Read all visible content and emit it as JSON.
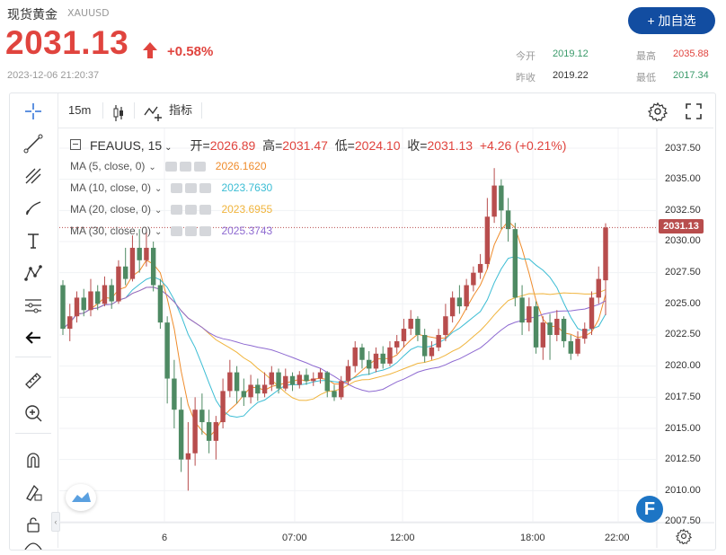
{
  "header": {
    "title": "现货黄金",
    "symbol": "XAUUSD",
    "price": "2031.13",
    "change": "+0.58%",
    "datetime": "2023-12-06 21:20:37",
    "add_watchlist": "+ 加自选",
    "quotes": [
      {
        "label": "今开",
        "value": "2019.12",
        "color": "#3a9a6a"
      },
      {
        "label": "最高",
        "value": "2035.88",
        "color": "#e0443e"
      },
      {
        "label": "昨收",
        "value": "2019.22",
        "color": "#333333"
      },
      {
        "label": "最低",
        "value": "2017.34",
        "color": "#3a9a6a"
      }
    ]
  },
  "toolbar": {
    "interval": "15m",
    "indicators": "指标"
  },
  "legend": {
    "name": "FEAUUS, 15",
    "open_label": "开=",
    "open": "2026.89",
    "high_label": "高=",
    "high": "2031.47",
    "low_label": "低=",
    "low": "2024.10",
    "close_label": "收=",
    "close": "2031.13",
    "change": "+4.26 (+0.21%)"
  },
  "moving_averages": [
    {
      "label": "MA (5, close, 0)",
      "value": "2026.1620",
      "color": "#ef8c2c"
    },
    {
      "label": "MA (10, close, 0)",
      "value": "2023.7630",
      "color": "#3cbdd4"
    },
    {
      "label": "MA (20, close, 0)",
      "value": "2023.6955",
      "color": "#f0b43c"
    },
    {
      "label": "MA (30, close, 0)",
      "value": "2025.3743",
      "color": "#8e6ad1"
    }
  ],
  "chart_data": {
    "type": "candlestick",
    "title": "FEAUUS, 15",
    "ylim": [
      2007.5,
      2037.5
    ],
    "y_ticks": [
      "2037.50",
      "2035.00",
      "2032.50",
      "2030.00",
      "2027.50",
      "2025.00",
      "2022.50",
      "2020.00",
      "2017.50",
      "2015.00",
      "2012.50",
      "2010.00",
      "2007.50"
    ],
    "x_ticks": [
      "6",
      "07:00",
      "12:00",
      "18:00",
      "22:00"
    ],
    "last_price": "2031.13",
    "up_color": "#b84d4d",
    "down_color": "#4e8a63",
    "candles": [
      [
        2026.5,
        2023.0,
        2026.9,
        2022.5
      ],
      [
        2023.0,
        2024.0,
        2025.0,
        2022.0
      ],
      [
        2024.0,
        2025.5,
        2026.0,
        2023.5
      ],
      [
        2025.5,
        2024.5,
        2026.2,
        2024.0
      ],
      [
        2024.5,
        2026.0,
        2027.0,
        2024.0
      ],
      [
        2026.0,
        2025.0,
        2026.5,
        2024.5
      ],
      [
        2025.0,
        2026.5,
        2027.2,
        2024.8
      ],
      [
        2026.5,
        2025.2,
        2027.0,
        2024.6
      ],
      [
        2025.2,
        2028.0,
        2028.5,
        2025.0
      ],
      [
        2028.0,
        2027.0,
        2029.5,
        2026.5
      ],
      [
        2027.0,
        2029.5,
        2030.5,
        2026.8
      ],
      [
        2029.5,
        2028.5,
        2031.0,
        2027.5
      ],
      [
        2028.5,
        2029.5,
        2031.0,
        2028.0
      ],
      [
        2029.5,
        2026.5,
        2030.0,
        2026.0
      ],
      [
        2026.5,
        2023.5,
        2027.0,
        2023.0
      ],
      [
        2023.5,
        2019.0,
        2024.0,
        2017.0
      ],
      [
        2019.0,
        2016.5,
        2020.5,
        2015.0
      ],
      [
        2016.5,
        2012.5,
        2017.5,
        2011.5
      ],
      [
        2012.5,
        2013.0,
        2015.5,
        2010.0
      ],
      [
        2013.0,
        2016.5,
        2017.5,
        2012.0
      ],
      [
        2016.5,
        2015.5,
        2017.8,
        2014.5
      ],
      [
        2015.5,
        2014.0,
        2016.5,
        2013.0
      ],
      [
        2014.0,
        2015.5,
        2016.0,
        2012.5
      ],
      [
        2015.5,
        2018.0,
        2019.0,
        2015.0
      ],
      [
        2018.0,
        2019.5,
        2020.5,
        2017.5
      ],
      [
        2019.5,
        2018.0,
        2020.0,
        2017.0
      ],
      [
        2018.0,
        2017.5,
        2019.0,
        2016.8
      ],
      [
        2017.5,
        2018.5,
        2019.3,
        2017.0
      ],
      [
        2018.5,
        2017.8,
        2019.0,
        2017.2
      ],
      [
        2017.8,
        2018.5,
        2019.5,
        2017.5
      ],
      [
        2018.5,
        2019.5,
        2020.0,
        2018.0
      ],
      [
        2019.5,
        2018.2,
        2019.8,
        2017.8
      ],
      [
        2018.2,
        2019.2,
        2019.8,
        2018.0
      ],
      [
        2019.2,
        2018.5,
        2019.5,
        2018.0
      ],
      [
        2018.5,
        2019.3,
        2019.6,
        2018.2
      ],
      [
        2019.3,
        2018.8,
        2019.8,
        2018.5
      ],
      [
        2018.8,
        2019.0,
        2019.5,
        2018.4
      ],
      [
        2019.0,
        2019.5,
        2019.8,
        2018.6
      ],
      [
        2019.5,
        2018.0,
        2019.6,
        2017.5
      ],
      [
        2018.0,
        2017.5,
        2018.5,
        2017.2
      ],
      [
        2017.5,
        2018.8,
        2019.2,
        2017.3
      ],
      [
        2018.8,
        2020.0,
        2020.5,
        2018.5
      ],
      [
        2020.0,
        2021.5,
        2022.0,
        2019.5
      ],
      [
        2021.5,
        2020.5,
        2021.8,
        2019.8
      ],
      [
        2020.5,
        2019.8,
        2021.2,
        2019.3
      ],
      [
        2019.8,
        2021.0,
        2021.5,
        2019.5
      ],
      [
        2021.0,
        2020.2,
        2021.6,
        2019.8
      ],
      [
        2020.2,
        2021.5,
        2022.0,
        2020.0
      ],
      [
        2021.5,
        2022.0,
        2022.5,
        2021.0
      ],
      [
        2022.0,
        2023.0,
        2023.8,
        2021.5
      ],
      [
        2023.0,
        2023.8,
        2024.5,
        2022.5
      ],
      [
        2023.8,
        2022.5,
        2024.0,
        2022.0
      ],
      [
        2022.5,
        2020.8,
        2023.0,
        2020.3
      ],
      [
        2020.8,
        2021.5,
        2022.0,
        2020.5
      ],
      [
        2021.5,
        2022.5,
        2023.0,
        2021.2
      ],
      [
        2022.5,
        2024.0,
        2025.0,
        2022.0
      ],
      [
        2024.0,
        2025.5,
        2026.0,
        2023.5
      ],
      [
        2025.5,
        2024.8,
        2026.5,
        2024.2
      ],
      [
        2024.8,
        2026.5,
        2027.0,
        2024.5
      ],
      [
        2026.5,
        2027.5,
        2028.0,
        2026.0
      ],
      [
        2027.5,
        2028.2,
        2029.0,
        2027.0
      ],
      [
        2028.2,
        2032.0,
        2033.5,
        2027.8
      ],
      [
        2032.0,
        2034.5,
        2035.9,
        2031.5
      ],
      [
        2034.5,
        2032.5,
        2035.0,
        2031.0
      ],
      [
        2032.5,
        2031.0,
        2033.5,
        2030.0
      ],
      [
        2031.0,
        2025.5,
        2031.5,
        2024.8
      ],
      [
        2025.5,
        2023.5,
        2026.5,
        2022.5
      ],
      [
        2023.5,
        2024.8,
        2025.5,
        2022.8
      ],
      [
        2024.8,
        2021.5,
        2025.2,
        2021.0
      ],
      [
        2021.5,
        2023.5,
        2024.0,
        2020.5
      ],
      [
        2023.5,
        2022.5,
        2024.2,
        2020.5
      ],
      [
        2022.5,
        2023.8,
        2024.5,
        2022.0
      ],
      [
        2023.8,
        2022.0,
        2024.0,
        2021.5
      ],
      [
        2022.0,
        2021.0,
        2022.5,
        2020.5
      ],
      [
        2021.0,
        2022.2,
        2022.8,
        2020.8
      ],
      [
        2022.2,
        2023.0,
        2023.5,
        2021.8
      ],
      [
        2023.0,
        2025.5,
        2026.0,
        2022.5
      ],
      [
        2025.5,
        2027.0,
        2028.0,
        2025.0
      ],
      [
        2026.89,
        2031.13,
        2031.47,
        2024.1
      ]
    ],
    "series": [
      {
        "name": "MA (5, close, 0)",
        "color": "#ef8c2c"
      },
      {
        "name": "MA (10, close, 0)",
        "color": "#3cbdd4"
      },
      {
        "name": "MA (20, close, 0)",
        "color": "#f0b43c"
      },
      {
        "name": "MA (30, close, 0)",
        "color": "#8e6ad1"
      }
    ]
  }
}
